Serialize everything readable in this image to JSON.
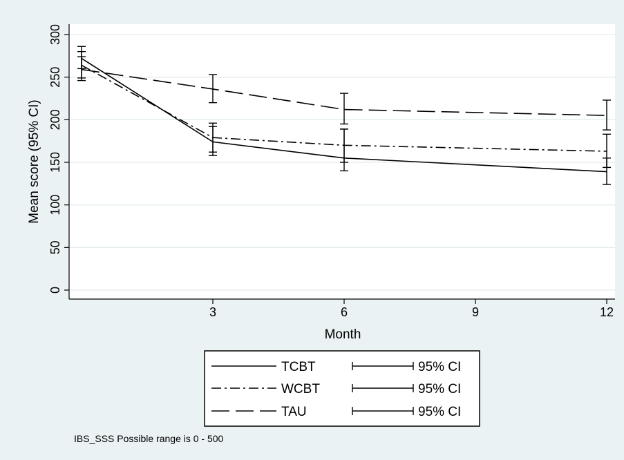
{
  "chart_data": {
    "type": "line",
    "title": "",
    "xlabel": "Month",
    "ylabel": "Mean score (95% CI)",
    "xlim": [
      0,
      12.2
    ],
    "ylim": [
      0,
      300
    ],
    "x_ticks": [
      3,
      6,
      9,
      12
    ],
    "y_ticks": [
      0,
      50,
      100,
      150,
      200,
      250,
      300
    ],
    "grid": true,
    "legend_position": "bottom",
    "legend_ci_label": "95% CI",
    "note": "IBS_SSS Possible range is 0 - 500",
    "series": [
      {
        "name": "TCBT",
        "style": "solid",
        "x": [
          0,
          3,
          6,
          12
        ],
        "y": [
          272,
          174,
          155,
          139
        ],
        "ci_low": [
          260,
          158,
          140,
          124
        ],
        "ci_high": [
          286,
          192,
          189,
          155
        ]
      },
      {
        "name": "WCBT",
        "style": "dash-dot",
        "x": [
          0,
          3,
          6,
          12
        ],
        "y": [
          264,
          179,
          170,
          163
        ],
        "ci_low": [
          246,
          162,
          150,
          144
        ],
        "ci_high": [
          280,
          196,
          189,
          183
        ]
      },
      {
        "name": "TAU",
        "style": "dash",
        "x": [
          0,
          3,
          6,
          12
        ],
        "y": [
          259,
          236,
          212,
          205
        ],
        "ci_low": [
          249,
          220,
          195,
          188
        ],
        "ci_high": [
          274,
          253,
          231,
          223
        ]
      }
    ]
  }
}
